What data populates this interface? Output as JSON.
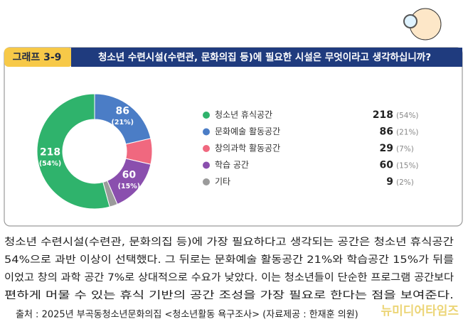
{
  "header": {
    "label": "그래프 3-9",
    "title": "청소년 수련시설(수련관, 문화의집 등)에 필요한 시설은 무엇이라고 생각하십니까?"
  },
  "chart_data": {
    "type": "pie",
    "categories": [
      "청소년 휴식공간",
      "문화예술 활동공간",
      "창의과학 활동공간",
      "학습 공간",
      "기타"
    ],
    "values": [
      218,
      86,
      29,
      60,
      9
    ],
    "percent_labels": [
      "(54%)",
      "(21%)",
      "(7%)",
      "(15%)",
      "(2%)"
    ],
    "colors": [
      "#2fb36c",
      "#4b7dc6",
      "#f0687f",
      "#8a4fae",
      "#9b9b9b"
    ]
  },
  "body": {
    "lines": [
      "청소년 수련시설(수련관, 문화의집 등)에 가장 필요하다고 생각되는 공간은 청소년 휴식공간",
      "54%으로 과반 이상이 선택했다. 그 뒤로는 문화예술 활동공간 21%와 학습공간 15%가 뒤를",
      "이었고 창의 과학 공간 7%로 상대적으로 수요가 낮았다. 이는 청소년들이 단순한 프로그램 공간보다",
      "편하게 머물 수 있는 휴식 기반의 공간 조성을 가장 필요로 한다는 점을 보여준다."
    ]
  },
  "source": "출처 : 2025년 부곡동청소년문화의집 <청소년활동 욕구조사> (자료제공 : 한재훈 의원)",
  "watermark": "뉴미디어타임즈"
}
